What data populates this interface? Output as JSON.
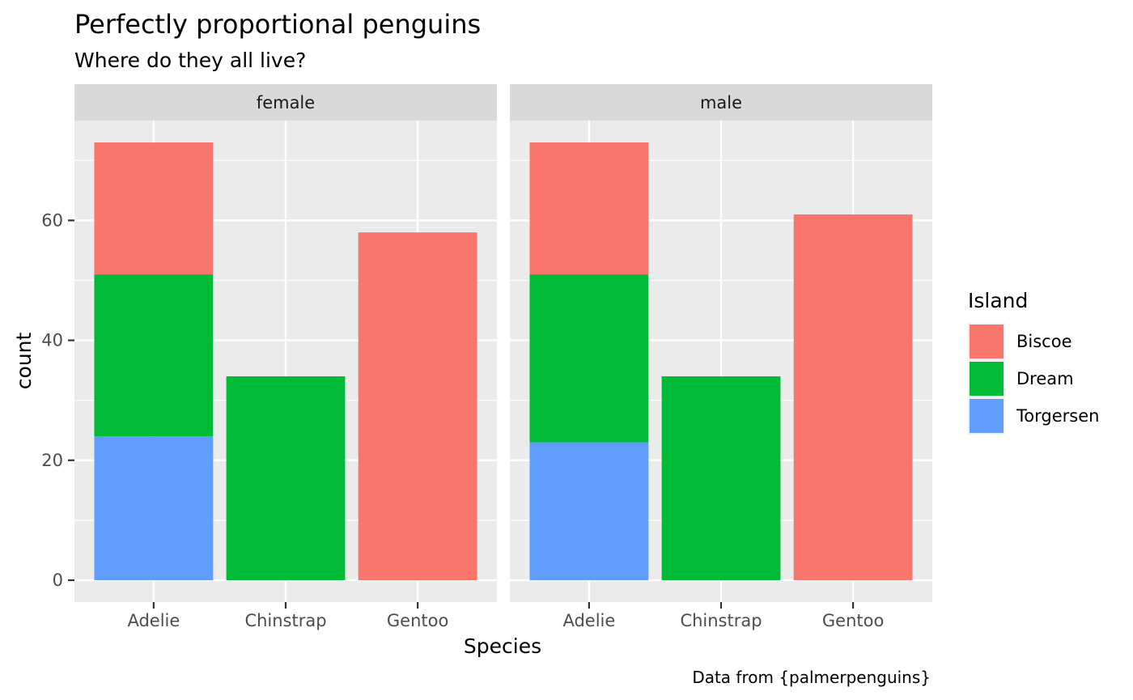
{
  "chart_data": {
    "type": "bar",
    "stacked": true,
    "title": "Perfectly proportional penguins",
    "subtitle": "Where do they all live?",
    "caption": "Data from {palmerpenguins}",
    "xlabel": "Species",
    "ylabel": "count",
    "ylim": [
      -3.65,
      76.65
    ],
    "yticks": [
      0,
      20,
      40,
      60
    ],
    "grid": true,
    "legend": {
      "title": "Island",
      "placement": "right",
      "entries": [
        {
          "name": "Biscoe",
          "color": "#F8766D"
        },
        {
          "name": "Dream",
          "color": "#00BA38"
        },
        {
          "name": "Torgersen",
          "color": "#619CFF"
        }
      ]
    },
    "categories": [
      "Adelie",
      "Chinstrap",
      "Gentoo"
    ],
    "facets": [
      {
        "label": "female",
        "series": [
          {
            "name": "Biscoe",
            "values": [
              22,
              0,
              58
            ]
          },
          {
            "name": "Dream",
            "values": [
              27,
              34,
              0
            ]
          },
          {
            "name": "Torgersen",
            "values": [
              24,
              0,
              0
            ]
          }
        ]
      },
      {
        "label": "male",
        "series": [
          {
            "name": "Biscoe",
            "values": [
              22,
              0,
              61
            ]
          },
          {
            "name": "Dream",
            "values": [
              28,
              34,
              0
            ]
          },
          {
            "name": "Torgersen",
            "values": [
              23,
              0,
              0
            ]
          }
        ]
      }
    ]
  }
}
